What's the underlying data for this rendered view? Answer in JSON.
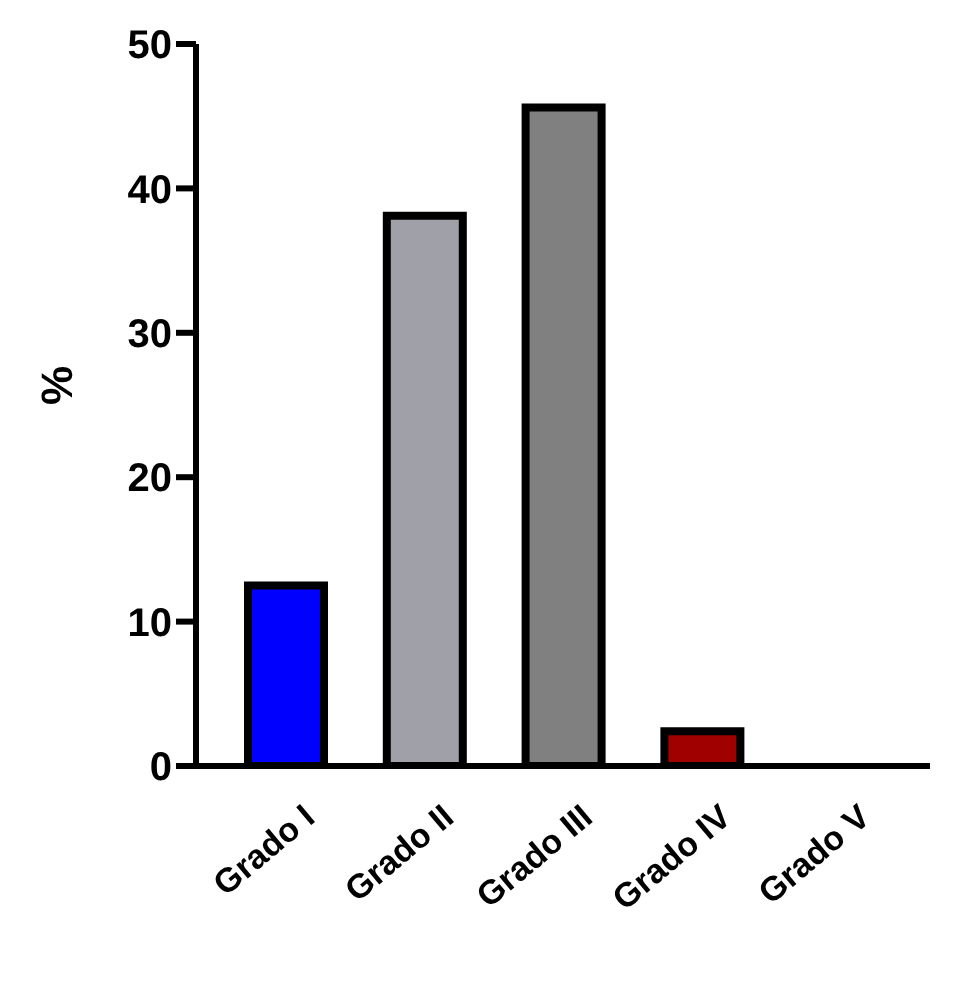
{
  "chart_data": {
    "type": "bar",
    "ylabel": "%",
    "categories": [
      "Grado I",
      "Grado II",
      "Grado III",
      "Grado IV",
      "Grado V"
    ],
    "values": [
      12.5,
      38.1,
      45.6,
      2.4,
      0
    ],
    "colors": [
      "#0000ff",
      "#a0a0a8",
      "#808080",
      "#a00000",
      "#ffffff"
    ],
    "ylim": [
      0,
      50
    ],
    "yticks": [
      0,
      10,
      20,
      30,
      40,
      50
    ],
    "grid": false,
    "legend": false
  }
}
